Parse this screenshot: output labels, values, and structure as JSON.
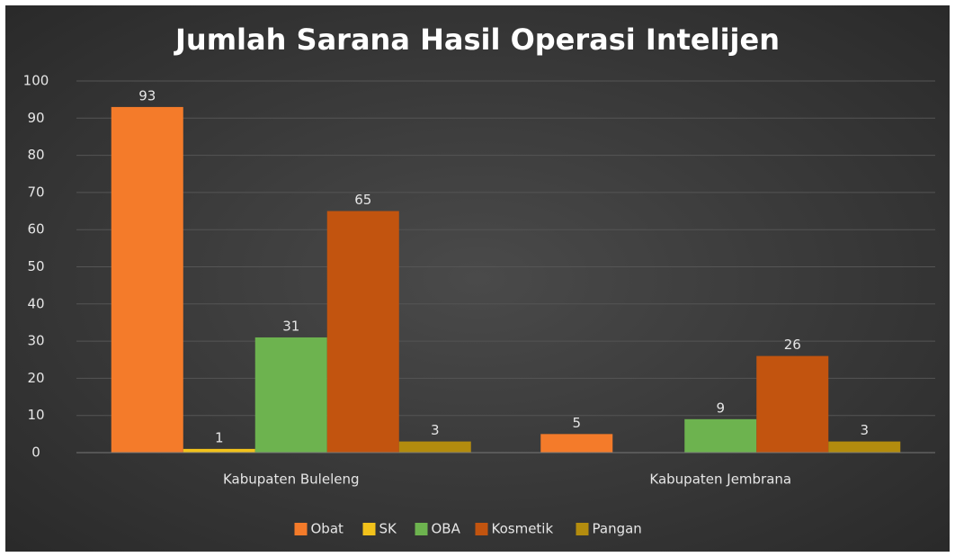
{
  "chart_data": {
    "type": "bar",
    "title": "Jumlah Sarana Hasil Operasi Intelijen",
    "categories": [
      "Kabupaten Buleleng",
      "Kabupaten Jembrana"
    ],
    "series": [
      {
        "name": "Obat",
        "color": "#f47b2a",
        "values": [
          93,
          5
        ]
      },
      {
        "name": "SK",
        "color": "#f2c21b",
        "values": [
          1,
          null
        ]
      },
      {
        "name": "OBA",
        "color": "#6db34f",
        "values": [
          31,
          9
        ]
      },
      {
        "name": "Kosmetik",
        "color": "#c2540f",
        "values": [
          65,
          26
        ]
      },
      {
        "name": "Pangan",
        "color": "#b38c0e",
        "values": [
          3,
          3
        ]
      }
    ],
    "ylim": [
      0,
      100
    ],
    "yticks": [
      0,
      10,
      20,
      30,
      40,
      50,
      60,
      70,
      80,
      90,
      100
    ],
    "grid": true,
    "legend": "bottom"
  }
}
